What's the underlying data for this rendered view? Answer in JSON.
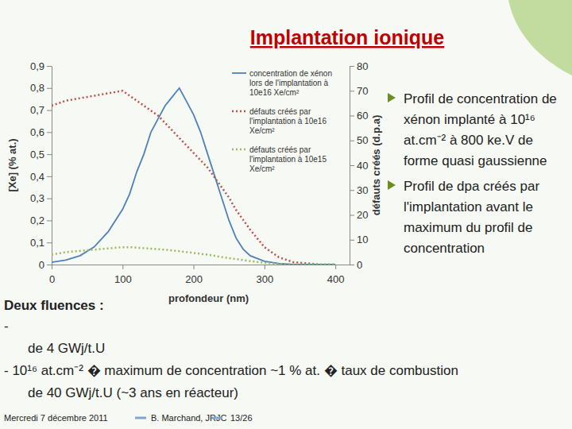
{
  "chart_data": {
    "type": "line",
    "title": "Implantation ionique",
    "x_label": "profondeur (nm)",
    "y_label": "[Xe] (% at.)",
    "y2_label": "défauts créés (d.p.a)",
    "x": [
      0,
      20,
      40,
      60,
      80,
      100,
      110,
      120,
      130,
      140,
      150,
      160,
      170,
      180,
      190,
      200,
      210,
      220,
      230,
      240,
      250,
      260,
      270,
      280,
      300,
      320,
      340,
      360,
      380,
      400
    ],
    "series": [
      {
        "name": "concentration de xénon lors de l'implantation à 10e16 Xe/cm²",
        "color": "#4f81bd",
        "line_style": "solid",
        "values": [
          0.01,
          0.02,
          0.04,
          0.08,
          0.15,
          0.25,
          0.32,
          0.42,
          0.5,
          0.6,
          0.66,
          0.72,
          0.76,
          0.8,
          0.74,
          0.68,
          0.6,
          0.5,
          0.4,
          0.3,
          0.2,
          0.12,
          0.07,
          0.04,
          0.015,
          0.005,
          0,
          0,
          0,
          0
        ]
      },
      {
        "name": "défauts créés par l'implantation à 10e16 Xe/cm²",
        "color": "#c0504d",
        "line_style": "dotted",
        "axis": "y2",
        "values": [
          64,
          66,
          67,
          68,
          69,
          70,
          68,
          66,
          64,
          62,
          60,
          57,
          54,
          51,
          48,
          45,
          42,
          39,
          35,
          31,
          27,
          22,
          18,
          14,
          7,
          3,
          1,
          0.5,
          0,
          0
        ]
      },
      {
        "name": "défauts créés par l'implantation à 10e15 Xe/cm²",
        "color": "#9bbb59",
        "line_style": "dotted",
        "axis": "y2",
        "values": [
          4,
          5,
          5.5,
          6,
          6.5,
          7,
          7,
          6.8,
          6.6,
          6.4,
          6.2,
          6,
          5.7,
          5.4,
          5,
          4.7,
          4.3,
          4,
          3.5,
          3,
          2.6,
          2.2,
          1.8,
          1.4,
          0.7,
          0.3,
          0.1,
          0,
          0,
          0
        ]
      }
    ],
    "xlim": [
      0,
      420
    ],
    "xticks": [
      0,
      100,
      200,
      300,
      400
    ],
    "ylim": [
      0,
      0.9
    ],
    "yticks": [
      0,
      {
        "value": 0.1,
        "label": "0,1"
      },
      {
        "value": 0.2,
        "label": "0,2"
      },
      {
        "value": 0.3,
        "label": "0,3"
      },
      {
        "value": 0.4,
        "label": "0,4"
      },
      {
        "value": 0.5,
        "label": "0,5"
      },
      {
        "value": 0.6,
        "label": "0,6"
      },
      {
        "value": 0.7,
        "label": "0,7"
      },
      {
        "value": 0.8,
        "label": "0,8"
      },
      {
        "value": 0.9,
        "label": "0,9"
      }
    ],
    "y2lim": [
      0,
      80
    ],
    "y2ticks": [
      0,
      10,
      20,
      30,
      40,
      50,
      60,
      70,
      80
    ],
    "grid": false,
    "legend": "upper right",
    "bullets": [
      "Profil de concentration de xénon implanté à 10¹⁶ at.cm⁻² à 800 ke.V de forme quasi gaussienne",
      "Profil de dpa créés par l'implantation avant le maximum du profil de concentration"
    ],
    "annotations": [
      "Deux fluences :",
      "-",
      "de 4 GWj/t.U",
      "- 10¹⁶ at.cm⁻² � maximum de concentration ~1 % at. � taux de combustion",
      "de 40 GWj/t.U (~3 ans en réacteur)",
      "Mercredi 7 décembre 2011",
      "B. Marchand, JRJC",
      "13/26"
    ]
  }
}
